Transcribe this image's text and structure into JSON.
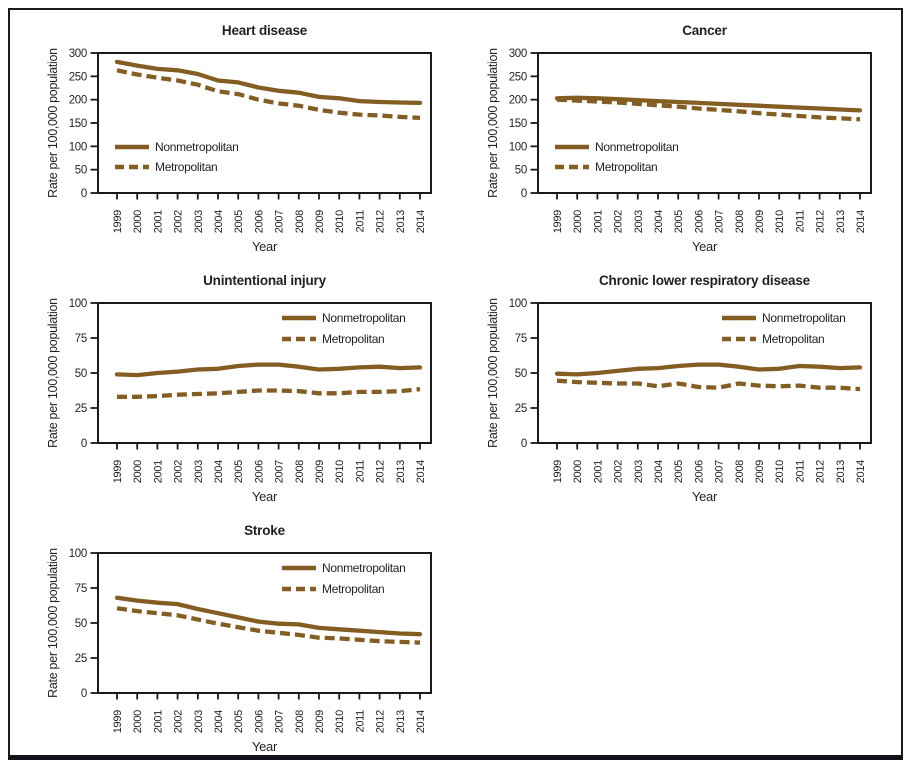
{
  "figure": {
    "frame_color": "#1a1a1a",
    "line_color": "#845d22",
    "text_color": "#231f20",
    "x_axis_label": "Year",
    "y_axis_label": "Rate per 100,000 population",
    "legend_labels": [
      "Nonmetropolitan",
      "Metropolitan"
    ]
  },
  "chart_data": [
    {
      "type": "line",
      "title": "Heart disease",
      "xlabel": "Year",
      "ylabel": "Rate per 100,000 population",
      "x": [
        1999,
        2000,
        2001,
        2002,
        2003,
        2004,
        2005,
        2006,
        2007,
        2008,
        2009,
        2010,
        2011,
        2012,
        2013,
        2014
      ],
      "ylim": [
        0,
        300
      ],
      "yticks": [
        0,
        50,
        100,
        150,
        200,
        250,
        300
      ],
      "grid": false,
      "legend_position": "middle-left",
      "series": [
        {
          "name": "Nonmetropolitan",
          "style": "solid",
          "values": [
            281,
            273,
            266,
            263,
            255,
            241,
            237,
            226,
            219,
            215,
            206,
            203,
            197,
            195,
            194,
            193
          ]
        },
        {
          "name": "Metropolitan",
          "style": "dashed",
          "values": [
            263,
            254,
            247,
            241,
            232,
            218,
            212,
            200,
            192,
            187,
            178,
            172,
            168,
            166,
            163,
            161
          ]
        }
      ]
    },
    {
      "type": "line",
      "title": "Cancer",
      "xlabel": "Year",
      "ylabel": "Rate per 100,000 population",
      "x": [
        1999,
        2000,
        2001,
        2002,
        2003,
        2004,
        2005,
        2006,
        2007,
        2008,
        2009,
        2010,
        2011,
        2012,
        2013,
        2014
      ],
      "ylim": [
        0,
        300
      ],
      "yticks": [
        0,
        50,
        100,
        150,
        200,
        250,
        300
      ],
      "grid": false,
      "legend_position": "middle-left",
      "series": [
        {
          "name": "Nonmetropolitan",
          "style": "solid",
          "values": [
            203,
            204,
            203,
            201,
            199,
            197,
            195,
            193,
            191,
            189,
            187,
            185,
            183,
            181,
            179,
            177
          ]
        },
        {
          "name": "Metropolitan",
          "style": "dashed",
          "values": [
            200,
            198,
            196,
            194,
            191,
            188,
            185,
            181,
            178,
            175,
            171,
            168,
            165,
            162,
            160,
            158
          ]
        }
      ]
    },
    {
      "type": "line",
      "title": "Unintentional injury",
      "xlabel": "Year",
      "ylabel": "Rate per 100,000 population",
      "x": [
        1999,
        2000,
        2001,
        2002,
        2003,
        2004,
        2005,
        2006,
        2007,
        2008,
        2009,
        2010,
        2011,
        2012,
        2013,
        2014
      ],
      "ylim": [
        0,
        100
      ],
      "yticks": [
        0,
        25,
        50,
        75,
        100
      ],
      "grid": false,
      "legend_position": "top-right",
      "series": [
        {
          "name": "Nonmetropolitan",
          "style": "solid",
          "values": [
            49,
            48.5,
            50,
            51,
            52.5,
            53,
            55,
            56,
            56,
            54.5,
            52.5,
            53,
            54,
            54.5,
            53.5,
            54
          ]
        },
        {
          "name": "Metropolitan",
          "style": "dashed",
          "values": [
            33,
            33,
            33.5,
            34.5,
            35,
            35.5,
            36.5,
            37.5,
            37.5,
            37,
            35.5,
            35.5,
            36.5,
            36.5,
            37,
            38.5
          ]
        }
      ]
    },
    {
      "type": "line",
      "title": "Chronic lower respiratory disease",
      "xlabel": "Year",
      "ylabel": "Rate per 100,000 population",
      "x": [
        1999,
        2000,
        2001,
        2002,
        2003,
        2004,
        2005,
        2006,
        2007,
        2008,
        2009,
        2010,
        2011,
        2012,
        2013,
        2014
      ],
      "ylim": [
        0,
        100
      ],
      "yticks": [
        0,
        25,
        50,
        75,
        100
      ],
      "grid": false,
      "legend_position": "top-right",
      "series": [
        {
          "name": "Nonmetropolitan",
          "style": "solid",
          "values": [
            49.5,
            49,
            50,
            51.5,
            53,
            53.5,
            55,
            56,
            56,
            54.5,
            52.5,
            53,
            55,
            54.5,
            53.5,
            54
          ]
        },
        {
          "name": "Metropolitan",
          "style": "dashed",
          "values": [
            44.5,
            43.5,
            43,
            42.5,
            42.5,
            40.5,
            42.5,
            40,
            39.5,
            42.5,
            41,
            40.5,
            41,
            39.5,
            39.5,
            38.5
          ]
        }
      ]
    },
    {
      "type": "line",
      "title": "Stroke",
      "xlabel": "Year",
      "ylabel": "Rate per 100,000 population",
      "x": [
        1999,
        2000,
        2001,
        2002,
        2003,
        2004,
        2005,
        2006,
        2007,
        2008,
        2009,
        2010,
        2011,
        2012,
        2013,
        2014
      ],
      "ylim": [
        0,
        100
      ],
      "yticks": [
        0,
        25,
        50,
        75,
        100
      ],
      "grid": false,
      "legend_position": "top-right",
      "series": [
        {
          "name": "Nonmetropolitan",
          "style": "solid",
          "values": [
            68,
            66,
            64.5,
            63.5,
            60,
            57,
            54,
            51,
            49.5,
            49,
            46.5,
            45.5,
            44.5,
            43.5,
            42.5,
            42
          ]
        },
        {
          "name": "Metropolitan",
          "style": "dashed",
          "values": [
            60.5,
            58.5,
            57,
            55.5,
            52.5,
            49.5,
            47,
            44.5,
            43,
            41.5,
            39.5,
            39,
            38,
            37,
            36.5,
            36
          ]
        }
      ]
    }
  ]
}
